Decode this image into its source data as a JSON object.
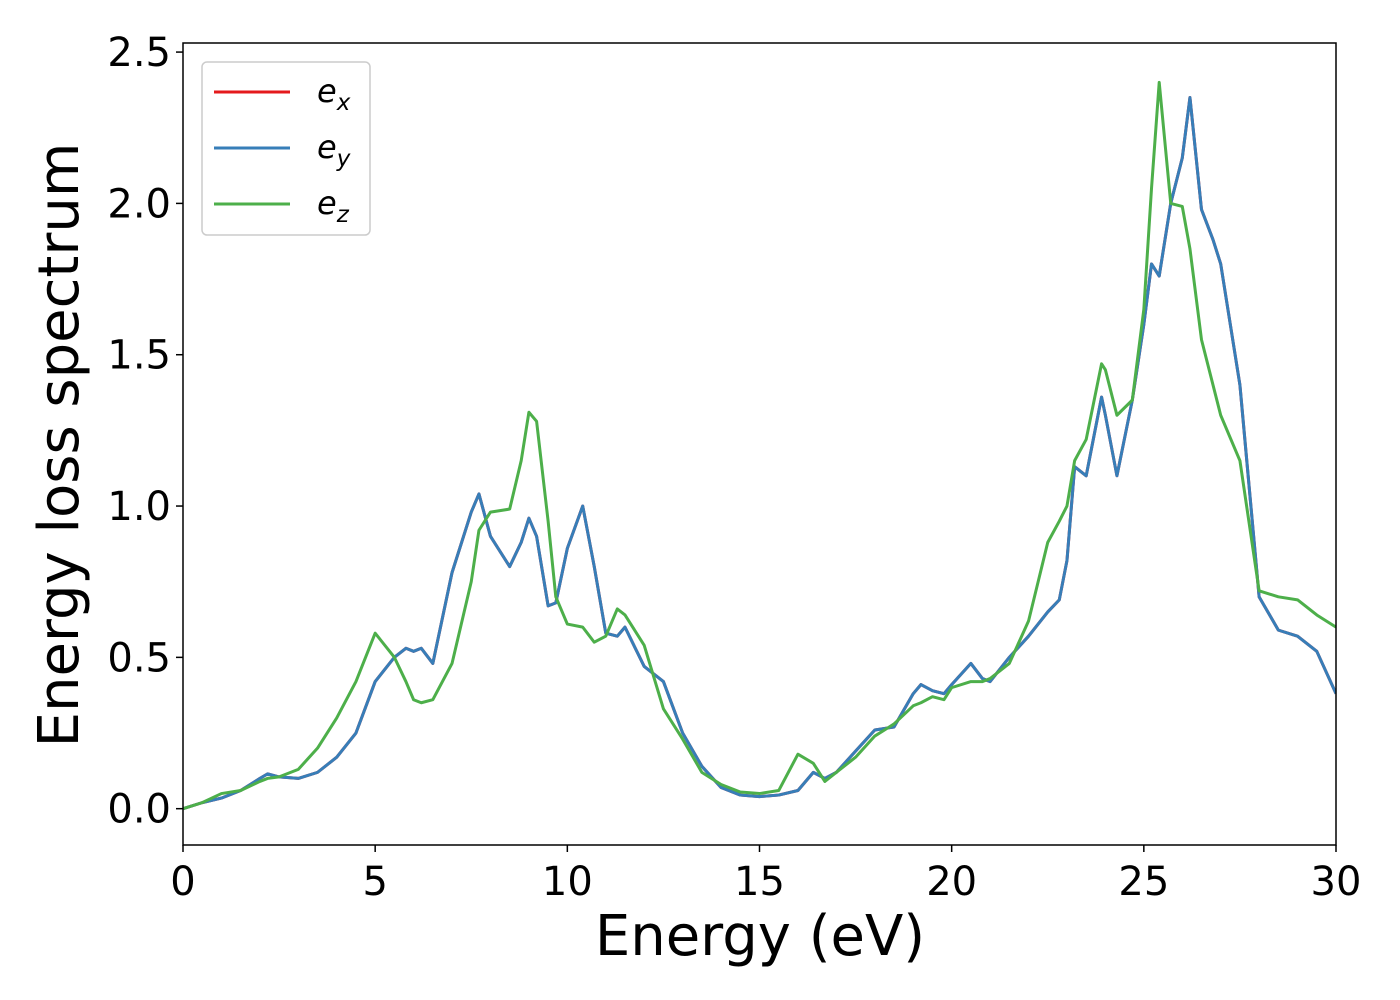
{
  "chart_data": {
    "type": "line",
    "xlabel": "Energy (eV)",
    "ylabel": "Energy loss spectrum",
    "x": [
      0,
      0.5,
      1,
      1.5,
      2,
      2.2,
      2.5,
      3,
      3.5,
      4,
      4.5,
      5,
      5.5,
      5.8,
      6,
      6.2,
      6.5,
      7,
      7.5,
      7.7,
      8,
      8.5,
      8.8,
      9,
      9.2,
      9.5,
      9.7,
      10,
      10.4,
      10.7,
      11,
      11.3,
      11.5,
      12,
      12.5,
      13,
      13.5,
      14,
      14.5,
      15,
      15.5,
      16,
      16.4,
      16.7,
      17,
      17.5,
      18,
      18.5,
      19,
      19.2,
      19.5,
      19.8,
      20,
      20.5,
      20.8,
      21,
      21.5,
      22,
      22.5,
      22.8,
      23,
      23.2,
      23.5,
      23.9,
      24,
      24.3,
      24.7,
      25,
      25.2,
      25.4,
      25.7,
      26,
      26.2,
      26.5,
      26.8,
      27,
      27.5,
      28,
      28.5,
      29,
      29.5,
      30
    ],
    "series": [
      {
        "name": "e_x",
        "color": "#e41a1c",
        "values": [
          0,
          0.02,
          0.035,
          0.06,
          0.1,
          0.115,
          0.105,
          0.1,
          0.12,
          0.17,
          0.25,
          0.42,
          0.5,
          0.53,
          0.52,
          0.53,
          0.48,
          0.78,
          0.98,
          1.04,
          0.9,
          0.8,
          0.88,
          0.96,
          0.9,
          0.67,
          0.68,
          0.86,
          1.0,
          0.8,
          0.58,
          0.57,
          0.6,
          0.47,
          0.42,
          0.25,
          0.14,
          0.07,
          0.045,
          0.04,
          0.045,
          0.06,
          0.12,
          0.1,
          0.12,
          0.19,
          0.26,
          0.27,
          0.38,
          0.41,
          0.39,
          0.38,
          0.41,
          0.48,
          0.43,
          0.42,
          0.5,
          0.57,
          0.65,
          0.69,
          0.82,
          1.13,
          1.1,
          1.36,
          1.3,
          1.1,
          1.35,
          1.6,
          1.8,
          1.76,
          2.0,
          2.15,
          2.35,
          1.98,
          1.88,
          1.8,
          1.4,
          0.7,
          0.59,
          0.57,
          0.52,
          0.38
        ]
      },
      {
        "name": "e_y",
        "color": "#377eb8",
        "values": [
          0,
          0.02,
          0.035,
          0.06,
          0.1,
          0.115,
          0.105,
          0.1,
          0.12,
          0.17,
          0.25,
          0.42,
          0.5,
          0.53,
          0.52,
          0.53,
          0.48,
          0.78,
          0.98,
          1.04,
          0.9,
          0.8,
          0.88,
          0.96,
          0.9,
          0.67,
          0.68,
          0.86,
          1.0,
          0.8,
          0.58,
          0.57,
          0.6,
          0.47,
          0.42,
          0.25,
          0.14,
          0.07,
          0.045,
          0.04,
          0.045,
          0.06,
          0.12,
          0.1,
          0.12,
          0.19,
          0.26,
          0.27,
          0.38,
          0.41,
          0.39,
          0.38,
          0.41,
          0.48,
          0.43,
          0.42,
          0.5,
          0.57,
          0.65,
          0.69,
          0.82,
          1.13,
          1.1,
          1.36,
          1.3,
          1.1,
          1.35,
          1.6,
          1.8,
          1.76,
          2.0,
          2.15,
          2.35,
          1.98,
          1.88,
          1.8,
          1.4,
          0.7,
          0.59,
          0.57,
          0.52,
          0.38
        ]
      },
      {
        "name": "e_z",
        "color": "#4daf4a",
        "values": [
          0,
          0.02,
          0.05,
          0.06,
          0.09,
          0.1,
          0.105,
          0.13,
          0.2,
          0.3,
          0.42,
          0.58,
          0.5,
          0.42,
          0.36,
          0.35,
          0.36,
          0.48,
          0.75,
          0.92,
          0.98,
          0.99,
          1.15,
          1.31,
          1.28,
          0.95,
          0.7,
          0.61,
          0.6,
          0.55,
          0.57,
          0.66,
          0.64,
          0.54,
          0.33,
          0.23,
          0.12,
          0.08,
          0.055,
          0.05,
          0.06,
          0.18,
          0.15,
          0.09,
          0.12,
          0.17,
          0.24,
          0.28,
          0.34,
          0.35,
          0.37,
          0.36,
          0.4,
          0.42,
          0.42,
          0.43,
          0.48,
          0.62,
          0.88,
          0.95,
          1.0,
          1.15,
          1.22,
          1.47,
          1.45,
          1.3,
          1.35,
          1.65,
          2.05,
          2.4,
          2.0,
          1.99,
          1.85,
          1.55,
          1.4,
          1.3,
          1.15,
          0.72,
          0.7,
          0.69,
          0.64,
          0.6
        ]
      }
    ],
    "xlim": [
      0,
      30
    ],
    "xticks": [
      0,
      5,
      10,
      15,
      20,
      25,
      30
    ],
    "ylim": [
      -0.12,
      2.53
    ],
    "yticks": [
      {
        "value": 0,
        "label": "0.0"
      },
      {
        "value": 0.5,
        "label": "0.5"
      },
      {
        "value": 1,
        "label": "1.0"
      },
      {
        "value": 1.5,
        "label": "1.5"
      },
      {
        "value": 2,
        "label": "2.0"
      },
      {
        "value": 2.5,
        "label": "2.5"
      }
    ],
    "grid": false,
    "legend": "upper left"
  }
}
